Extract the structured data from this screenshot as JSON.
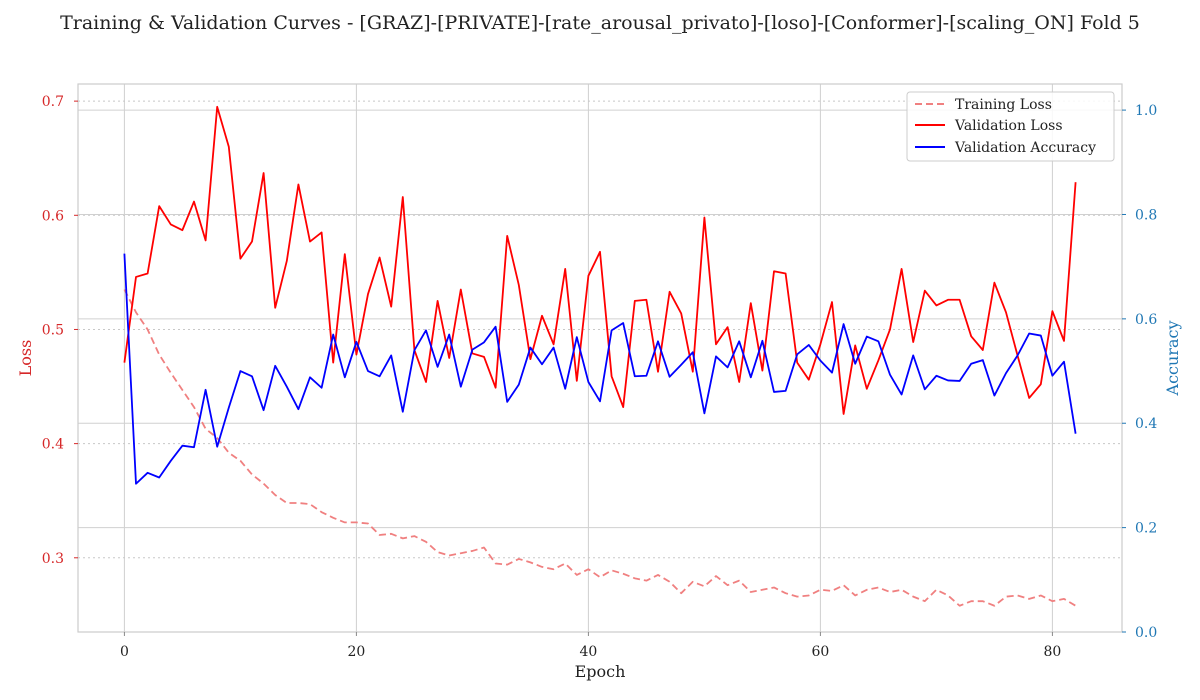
{
  "chart_data": {
    "type": "line",
    "title": "Training & Validation Curves - [GRAZ]-[PRIVATE]-[rate_arousal_privato]-[loso]-[Conformer]-[scaling_ON] Fold 5",
    "xlabel": "Epoch",
    "ylabel_left": "Loss",
    "ylabel_right": "Accuracy",
    "xlim": [
      -4,
      86
    ],
    "ylim_left": [
      0.235,
      0.715
    ],
    "ylim_right": [
      0.0,
      1.05
    ],
    "x_ticks": [
      0,
      20,
      40,
      60,
      80
    ],
    "y_left_ticks": [
      0.3,
      0.4,
      0.5,
      0.6,
      0.7
    ],
    "y_right_ticks": [
      0.0,
      0.2,
      0.4,
      0.6,
      0.8,
      1.0
    ],
    "x_tick_labels": [
      "0",
      "20",
      "40",
      "60",
      "80"
    ],
    "y_left_tick_labels": [
      "0.3",
      "0.4",
      "0.5",
      "0.6",
      "0.7"
    ],
    "y_right_tick_labels": [
      "0.0",
      "0.2",
      "0.4",
      "0.6",
      "0.8",
      "1.0"
    ],
    "grid": true,
    "legend_position": "top-right",
    "colors": {
      "training_loss": "#f08080",
      "validation_loss": "#ff0000",
      "validation_accuracy": "#0000ff",
      "left_axis": "#d62728",
      "right_axis": "#1f77b4"
    },
    "series": [
      {
        "name": "Training Loss",
        "axis": "left",
        "style": "dashed",
        "values": [
          0.535,
          0.515,
          0.5,
          0.478,
          0.462,
          0.447,
          0.432,
          0.413,
          0.405,
          0.392,
          0.385,
          0.373,
          0.365,
          0.355,
          0.348,
          0.348,
          0.347,
          0.34,
          0.335,
          0.331,
          0.331,
          0.33,
          0.32,
          0.321,
          0.317,
          0.319,
          0.314,
          0.305,
          0.302,
          0.304,
          0.306,
          0.309,
          0.295,
          0.294,
          0.299,
          0.296,
          0.292,
          0.29,
          0.295,
          0.285,
          0.29,
          0.283,
          0.289,
          0.286,
          0.282,
          0.28,
          0.285,
          0.279,
          0.269,
          0.279,
          0.275,
          0.284,
          0.276,
          0.28,
          0.27,
          0.272,
          0.274,
          0.269,
          0.266,
          0.267,
          0.272,
          0.271,
          0.276,
          0.267,
          0.272,
          0.274,
          0.27,
          0.272,
          0.266,
          0.262,
          0.272,
          0.267,
          0.258,
          0.262,
          0.262,
          0.258,
          0.266,
          0.267,
          0.264,
          0.267,
          0.262,
          0.264,
          0.258
        ]
      },
      {
        "name": "Validation Loss",
        "axis": "left",
        "style": "solid",
        "values": [
          0.471,
          0.546,
          0.549,
          0.608,
          0.592,
          0.587,
          0.612,
          0.578,
          0.695,
          0.66,
          0.562,
          0.577,
          0.637,
          0.519,
          0.56,
          0.627,
          0.577,
          0.585,
          0.471,
          0.566,
          0.478,
          0.531,
          0.563,
          0.52,
          0.616,
          0.482,
          0.454,
          0.525,
          0.475,
          0.535,
          0.479,
          0.476,
          0.449,
          0.582,
          0.539,
          0.474,
          0.512,
          0.487,
          0.553,
          0.455,
          0.547,
          0.568,
          0.459,
          0.432,
          0.525,
          0.526,
          0.463,
          0.533,
          0.514,
          0.463,
          0.598,
          0.487,
          0.502,
          0.454,
          0.523,
          0.464,
          0.551,
          0.549,
          0.471,
          0.456,
          0.487,
          0.524,
          0.426,
          0.486,
          0.448,
          0.473,
          0.5,
          0.553,
          0.489,
          0.534,
          0.521,
          0.526,
          0.526,
          0.494,
          0.482,
          0.541,
          0.515,
          0.477,
          0.44,
          0.452,
          0.516,
          0.49,
          0.629
        ]
      },
      {
        "name": "Validation Accuracy",
        "axis": "right",
        "style": "solid",
        "values": [
          0.725,
          0.284,
          0.305,
          0.296,
          0.328,
          0.357,
          0.354,
          0.464,
          0.355,
          0.43,
          0.5,
          0.49,
          0.425,
          0.51,
          0.47,
          0.427,
          0.488,
          0.468,
          0.57,
          0.488,
          0.556,
          0.5,
          0.49,
          0.53,
          0.422,
          0.54,
          0.578,
          0.508,
          0.57,
          0.47,
          0.541,
          0.555,
          0.585,
          0.441,
          0.474,
          0.545,
          0.513,
          0.545,
          0.466,
          0.565,
          0.479,
          0.442,
          0.578,
          0.592,
          0.49,
          0.491,
          0.557,
          0.489,
          0.512,
          0.536,
          0.419,
          0.528,
          0.507,
          0.557,
          0.488,
          0.558,
          0.46,
          0.462,
          0.532,
          0.55,
          0.52,
          0.497,
          0.59,
          0.514,
          0.566,
          0.557,
          0.493,
          0.455,
          0.53,
          0.465,
          0.491,
          0.482,
          0.481,
          0.514,
          0.521,
          0.453,
          0.496,
          0.53,
          0.572,
          0.568,
          0.491,
          0.518,
          0.38
        ]
      }
    ]
  }
}
